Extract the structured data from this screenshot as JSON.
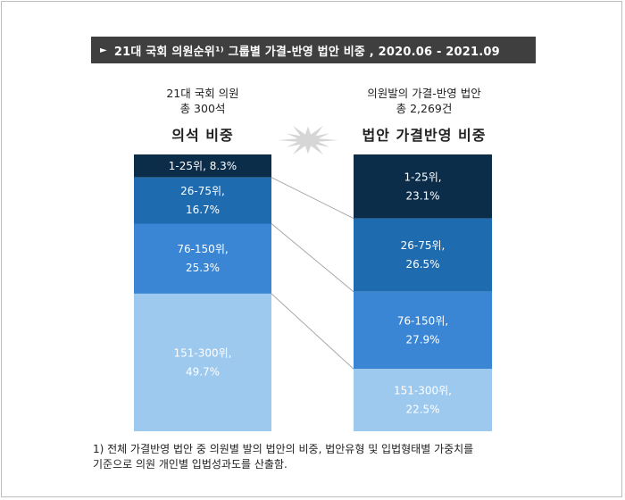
{
  "title": "21대 국회 의원순위¹⁾ 그룹별 가결-반영 법안 비중 , 2020.06 - 2021.09",
  "left_header": {
    "line1": "21대 국회 의원",
    "line2": "총 300석",
    "heading": "의석 비중"
  },
  "right_header": {
    "line1": "의원발의 가결-반영 법안",
    "line2": "총 2,269건",
    "heading": "법안 가결반영 비중"
  },
  "footnote": {
    "line1": "1) 전체 가결반영 법안 중 의원별 발의 법안의 비중, 법안유형 및 입법형태별 가중치를",
    "line2": "기준으로 의원 개인별 입법성과도를 산출함."
  },
  "colors": {
    "title_bg": "#3f3f3f",
    "tier_colors": [
      "#0b2d4a",
      "#1f6bb0",
      "#3b86d4",
      "#9ec9ee"
    ],
    "connector": "#a8a8a8",
    "burst": "#d6d6d6"
  },
  "chart_data": {
    "type": "bar",
    "stacked": true,
    "categories": [
      "의석 비중",
      "법안 가결반영 비중"
    ],
    "series": [
      {
        "name": "1-25위",
        "values": [
          8.3,
          23.1
        ]
      },
      {
        "name": "26-75위",
        "values": [
          16.7,
          26.5
        ]
      },
      {
        "name": "76-150위",
        "values": [
          25.3,
          27.9
        ]
      },
      {
        "name": "151-300위",
        "values": [
          49.7,
          22.5
        ]
      }
    ],
    "unit": "%",
    "left_labels": [
      "1-25위, 8.3%",
      "26-75위,|16.7%",
      "76-150위,|25.3%",
      "151-300위,|49.7%"
    ],
    "right_labels": [
      "1-25위,|23.1%",
      "26-75위,|26.5%",
      "76-150위,|27.9%",
      "151-300위,|22.5%"
    ]
  }
}
